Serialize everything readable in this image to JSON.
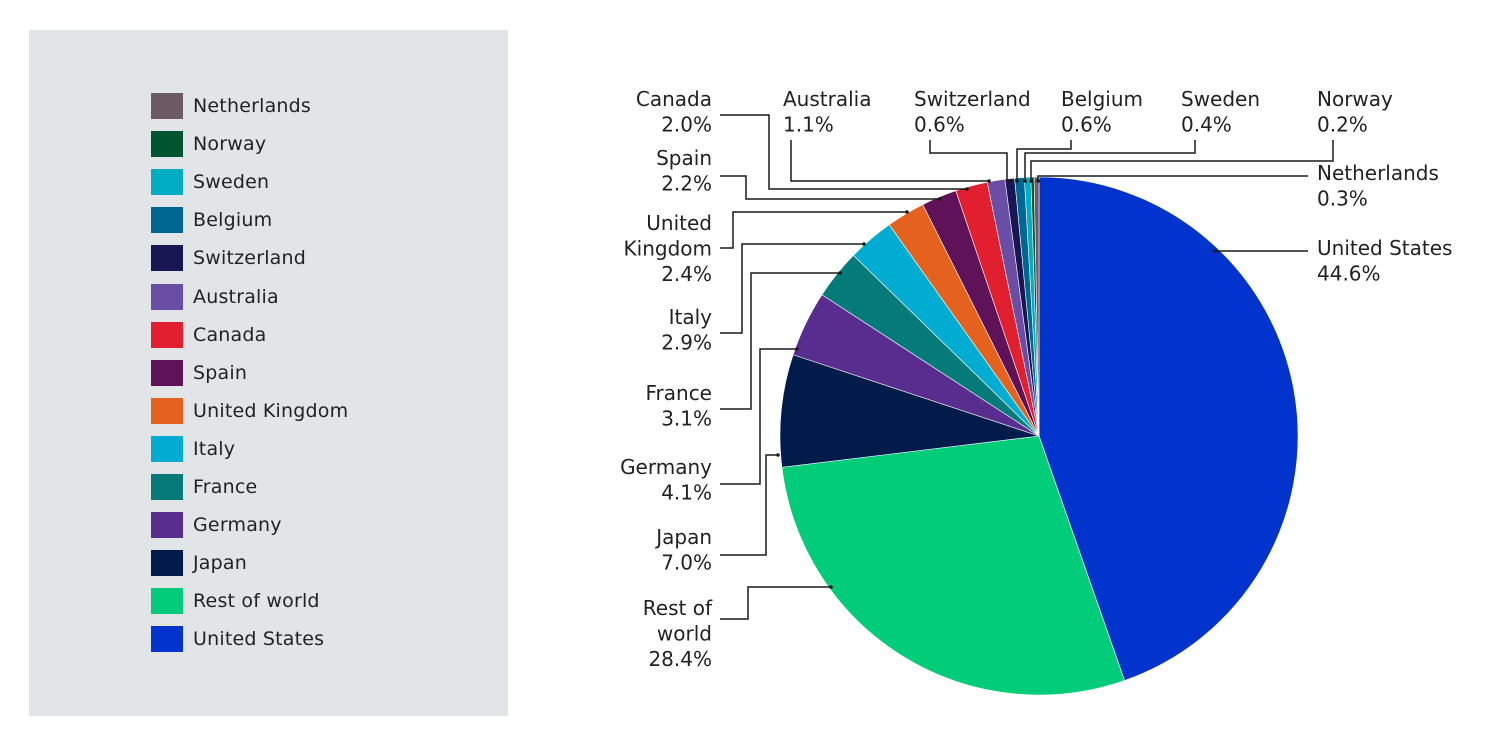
{
  "chart_data": {
    "type": "pie",
    "title": "",
    "legend_position": "left",
    "slices": [
      {
        "name": "United States",
        "value": 44.6,
        "value_label": "44.6%",
        "color": "#0233cc"
      },
      {
        "name": "Rest of world",
        "value": 28.4,
        "value_label": "28.4%",
        "color": "#00cc7a"
      },
      {
        "name": "Japan",
        "value": 7.0,
        "value_label": "7.0%",
        "color": "#011b4a"
      },
      {
        "name": "Germany",
        "value": 4.1,
        "value_label": "4.1%",
        "color": "#582d8f"
      },
      {
        "name": "France",
        "value": 3.1,
        "value_label": "3.1%",
        "color": "#047a79"
      },
      {
        "name": "Italy",
        "value": 2.9,
        "value_label": "2.9%",
        "color": "#00acd1"
      },
      {
        "name": "United Kingdom",
        "value": 2.4,
        "value_label": "2.4%",
        "color": "#e5621e"
      },
      {
        "name": "Spain",
        "value": 2.2,
        "value_label": "2.2%",
        "color": "#5f1257"
      },
      {
        "name": "Canada",
        "value": 2.0,
        "value_label": "2.0%",
        "color": "#e11f2f"
      },
      {
        "name": "Australia",
        "value": 1.1,
        "value_label": "1.1%",
        "color": "#6a4ea6"
      },
      {
        "name": "Switzerland",
        "value": 0.6,
        "value_label": "0.6%",
        "color": "#191654"
      },
      {
        "name": "Belgium",
        "value": 0.6,
        "value_label": "0.6%",
        "color": "#006793"
      },
      {
        "name": "Sweden",
        "value": 0.4,
        "value_label": "0.4%",
        "color": "#00adc2"
      },
      {
        "name": "Norway",
        "value": 0.2,
        "value_label": "0.2%",
        "color": "#005530"
      },
      {
        "name": "Netherlands",
        "value": 0.3,
        "value_label": "0.3%",
        "color": "#6e5a62"
      }
    ],
    "legend": [
      {
        "name": "Netherlands",
        "color": "#6e5a62"
      },
      {
        "name": "Norway",
        "color": "#005530"
      },
      {
        "name": "Sweden",
        "color": "#00adc2"
      },
      {
        "name": "Belgium",
        "color": "#006793"
      },
      {
        "name": "Switzerland",
        "color": "#191654"
      },
      {
        "name": "Australia",
        "color": "#6a4ea6"
      },
      {
        "name": "Canada",
        "color": "#e11f2f"
      },
      {
        "name": "Spain",
        "color": "#5f1257"
      },
      {
        "name": "United Kingdom",
        "color": "#e5621e"
      },
      {
        "name": "Italy",
        "color": "#00acd1"
      },
      {
        "name": "France",
        "color": "#047a79"
      },
      {
        "name": "Germany",
        "color": "#582d8f"
      },
      {
        "name": "Japan",
        "color": "#011b4a"
      },
      {
        "name": "Rest of world",
        "color": "#00cc7a"
      },
      {
        "name": "United States",
        "color": "#0233cc"
      }
    ],
    "slice_labels": {
      "United States": [
        "United States"
      ],
      "Rest of world": [
        "Rest of",
        "world"
      ],
      "Japan": [
        "Japan"
      ],
      "Germany": [
        "Germany"
      ],
      "France": [
        "France"
      ],
      "Italy": [
        "Italy"
      ],
      "United Kingdom": [
        "United",
        "Kingdom"
      ],
      "Spain": [
        "Spain"
      ],
      "Canada": [
        "Canada"
      ],
      "Australia": [
        "Australia"
      ],
      "Switzerland": [
        "Switzerland"
      ],
      "Belgium": [
        "Belgium"
      ],
      "Sweden": [
        "Sweden"
      ],
      "Norway": [
        "Norway"
      ],
      "Netherlands": [
        "Netherlands"
      ]
    }
  }
}
